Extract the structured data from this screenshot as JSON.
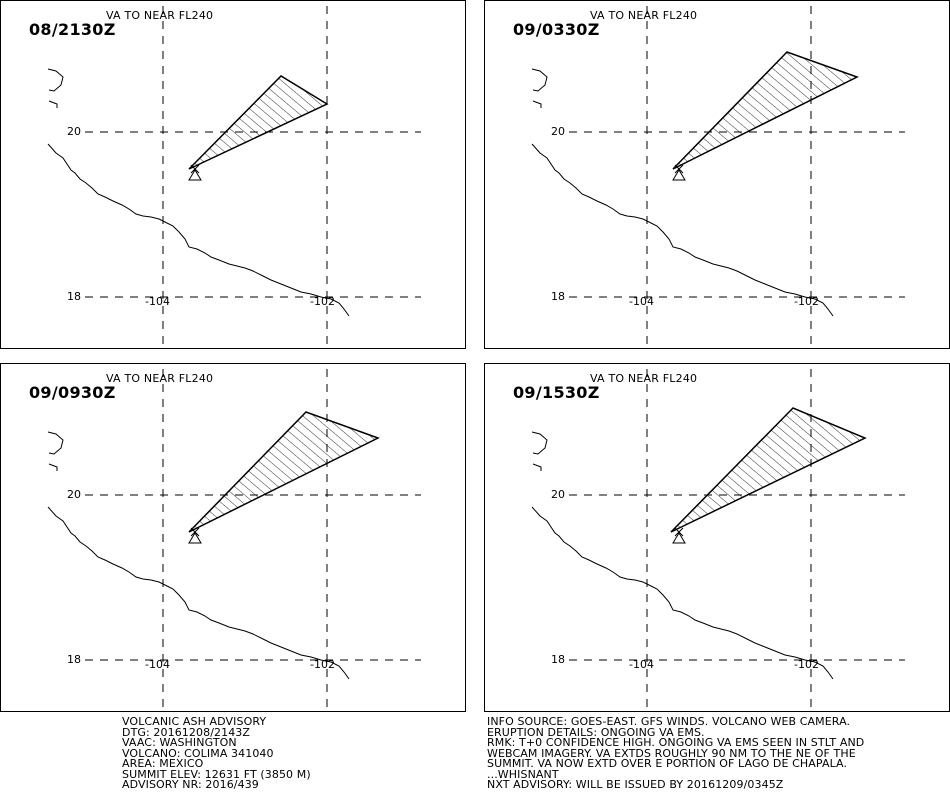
{
  "panels": [
    {
      "time": "08/2130Z",
      "title": "VA TO NEAR FL240",
      "lat_labels": [
        "20",
        "18"
      ],
      "lon_labels": [
        "-104",
        "-102"
      ],
      "ash_polygon": [
        [
          188,
          168
        ],
        [
          280,
          75
        ],
        [
          326,
          103
        ]
      ]
    },
    {
      "time": "09/0330Z",
      "title": "VA TO NEAR FL240",
      "lat_labels": [
        "20",
        "18"
      ],
      "lon_labels": [
        "-104",
        "-102"
      ],
      "ash_polygon": [
        [
          188,
          168
        ],
        [
          302,
          51
        ],
        [
          372,
          76
        ]
      ]
    },
    {
      "time": "09/0930Z",
      "title": "VA TO NEAR FL240",
      "lat_labels": [
        "20",
        "18"
      ],
      "lon_labels": [
        "-104",
        "-102"
      ],
      "ash_polygon": [
        [
          188,
          168
        ],
        [
          305,
          48
        ],
        [
          377,
          74
        ]
      ]
    },
    {
      "time": "09/1530Z",
      "title": "VA TO NEAR FL240",
      "lat_labels": [
        "20",
        "18"
      ],
      "lon_labels": [
        "-104",
        "-102"
      ],
      "ash_polygon": [
        [
          186,
          168
        ],
        [
          308,
          44
        ],
        [
          380,
          74
        ]
      ]
    }
  ],
  "advisory_left": [
    "VOLCANIC ASH ADVISORY",
    "DTG: 20161208/2143Z",
    "VAAC: WASHINGTON",
    "VOLCANO: COLIMA 341040",
    "AREA: MEXICO",
    "SUMMIT ELEV: 12631 FT (3850 M)",
    "ADVISORY NR: 2016/439"
  ],
  "advisory_right": [
    "INFO SOURCE: GOES-EAST. GFS WINDS. VOLCANO WEB CAMERA.",
    "ERUPTION DETAILS: ONGOING VA EMS.",
    "RMK: T+0 CONFIDENCE HIGH. ONGOING VA EMS SEEN IN STLT AND",
    "WEBCAM IMAGERY. VA EXTDS ROUGHLY 90 NM TO THE NE OF THE",
    "SUMMIT. VA NOW EXTD OVER E PORTION OF LAGO DE CHAPALA.",
    "...WHISNANT",
    "NXT ADVISORY: WILL BE ISSUED BY 20161209/0345Z"
  ]
}
